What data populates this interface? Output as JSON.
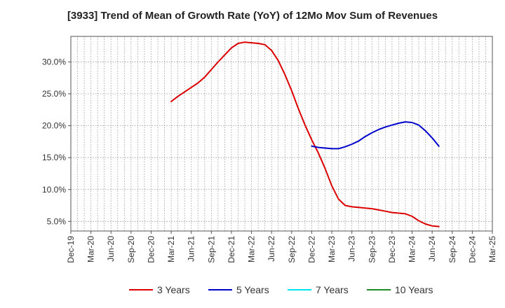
{
  "chart_data": {
    "type": "line",
    "title": "[3933]  Trend of Mean of Growth Rate (YoY) of 12Mo Mov Sum of Revenues",
    "xlabel": "",
    "ylabel": "",
    "ylim": [
      3.5,
      34.0
    ],
    "grid": true,
    "legend_position": "bottom",
    "x_ticks": [
      "Dec-19",
      "Mar-20",
      "Jun-20",
      "Sep-20",
      "Dec-20",
      "Mar-21",
      "Jun-21",
      "Sep-21",
      "Dec-21",
      "Mar-22",
      "Jun-22",
      "Sep-22",
      "Dec-22",
      "Mar-23",
      "Jun-23",
      "Sep-23",
      "Dec-23",
      "Mar-24",
      "Jun-24",
      "Sep-24",
      "Dec-24",
      "Mar-25"
    ],
    "y_ticks": [
      {
        "value": 5,
        "label": "5.0%"
      },
      {
        "value": 10,
        "label": "10.0%"
      },
      {
        "value": 15,
        "label": "15.0%"
      },
      {
        "value": 20,
        "label": "20.0%"
      },
      {
        "value": 25,
        "label": "25.0%"
      },
      {
        "value": 30,
        "label": "30.0%"
      }
    ],
    "series": [
      {
        "name": "3 Years",
        "color": "#dd0000",
        "points": [
          [
            15,
            23.8
          ],
          [
            16,
            24.6
          ],
          [
            17,
            25.3
          ],
          [
            18,
            26.0
          ],
          [
            19,
            26.7
          ],
          [
            20,
            27.6
          ],
          [
            21,
            28.8
          ],
          [
            22,
            30.0
          ],
          [
            23,
            31.1
          ],
          [
            24,
            32.2
          ],
          [
            25,
            32.9
          ],
          [
            26,
            33.1
          ],
          [
            27,
            33.0
          ],
          [
            28,
            32.9
          ],
          [
            29,
            32.7
          ],
          [
            30,
            31.8
          ],
          [
            31,
            30.2
          ],
          [
            32,
            28.0
          ],
          [
            33,
            25.5
          ],
          [
            34,
            22.7
          ],
          [
            35,
            20.1
          ],
          [
            36,
            17.8
          ],
          [
            37,
            15.7
          ],
          [
            38,
            13.3
          ],
          [
            39,
            10.6
          ],
          [
            40,
            8.5
          ],
          [
            41,
            7.5
          ],
          [
            42,
            7.3
          ],
          [
            43,
            7.2
          ],
          [
            44,
            7.1
          ],
          [
            45,
            7.0
          ],
          [
            46,
            6.8
          ],
          [
            47,
            6.6
          ],
          [
            48,
            6.4
          ],
          [
            49,
            6.3
          ],
          [
            50,
            6.2
          ],
          [
            51,
            5.8
          ],
          [
            52,
            5.1
          ],
          [
            53,
            4.6
          ],
          [
            54,
            4.3
          ],
          [
            55,
            4.2
          ]
        ]
      },
      {
        "name": "5 Years",
        "color": "#0000cc",
        "points": [
          [
            36,
            16.8
          ],
          [
            37,
            16.6
          ],
          [
            38,
            16.5
          ],
          [
            39,
            16.4
          ],
          [
            40,
            16.4
          ],
          [
            41,
            16.7
          ],
          [
            42,
            17.1
          ],
          [
            43,
            17.6
          ],
          [
            44,
            18.3
          ],
          [
            45,
            18.9
          ],
          [
            46,
            19.4
          ],
          [
            47,
            19.8
          ],
          [
            48,
            20.1
          ],
          [
            49,
            20.4
          ],
          [
            50,
            20.6
          ],
          [
            51,
            20.5
          ],
          [
            52,
            20.1
          ],
          [
            53,
            19.2
          ],
          [
            54,
            18.1
          ],
          [
            55,
            16.8
          ]
        ]
      },
      {
        "name": "7 Years",
        "color": "#00e5ee",
        "points": []
      },
      {
        "name": "10 Years",
        "color": "#228b22",
        "points": []
      }
    ]
  }
}
